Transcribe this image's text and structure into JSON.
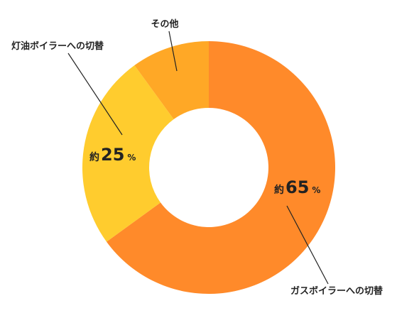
{
  "chart_data": {
    "type": "pie",
    "donut": true,
    "title": "",
    "slices": [
      {
        "label": "ガスボイラーへの切替",
        "value": 65,
        "value_prefix": "約",
        "value_text": "65",
        "value_suffix": "%",
        "color": "#FF8A2A"
      },
      {
        "label": "灯油ボイラーへの切替",
        "value": 25,
        "value_prefix": "約",
        "value_text": "25",
        "value_suffix": "%",
        "color": "#FFCC2E"
      },
      {
        "label": "その他",
        "value": 10,
        "color": "#FFA826"
      }
    ],
    "legend": "none",
    "start": "top",
    "direction": "clockwise"
  }
}
